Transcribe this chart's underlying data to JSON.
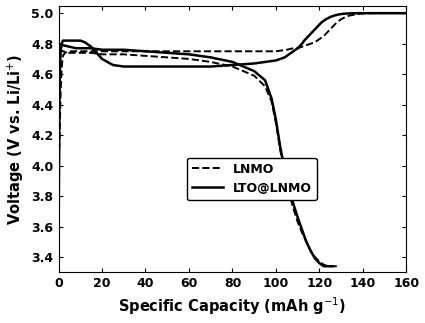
{
  "title": "",
  "xlabel": "Specific Capacity (mAh g⁻¹)",
  "ylabel": "Voltage (V vs. Li/Li⁺)",
  "xlim": [
    0,
    160
  ],
  "ylim": [
    3.3,
    5.05
  ],
  "xticks": [
    0,
    20,
    40,
    60,
    80,
    100,
    120,
    140,
    160
  ],
  "yticks": [
    3.4,
    3.6,
    3.8,
    4.0,
    4.2,
    4.4,
    4.6,
    4.8,
    5.0
  ],
  "lnmo_charge_x": [
    0,
    0.5,
    1.0,
    1.5,
    2,
    3,
    5,
    8,
    10,
    15,
    20,
    30,
    40,
    50,
    60,
    70,
    80,
    90,
    100,
    105,
    108,
    110,
    112,
    114,
    116,
    118,
    120,
    122,
    124,
    126,
    128,
    130,
    132,
    134,
    136,
    138,
    140,
    142,
    145,
    148,
    150,
    155,
    158,
    160
  ],
  "lnmo_charge_y": [
    3.9,
    4.2,
    4.5,
    4.65,
    4.72,
    4.74,
    4.75,
    4.75,
    4.75,
    4.75,
    4.75,
    4.75,
    4.75,
    4.75,
    4.75,
    4.75,
    4.75,
    4.75,
    4.75,
    4.76,
    4.77,
    4.77,
    4.78,
    4.79,
    4.8,
    4.81,
    4.83,
    4.85,
    4.88,
    4.91,
    4.94,
    4.96,
    4.975,
    4.985,
    4.99,
    4.995,
    4.998,
    4.999,
    5.0,
    5.0,
    5.0,
    5.0,
    5.0,
    5.0
  ],
  "lnmo_discharge_x": [
    0,
    2,
    5,
    8,
    10,
    15,
    20,
    25,
    30,
    40,
    50,
    60,
    70,
    80,
    90,
    95,
    98,
    100,
    102,
    104,
    106,
    108,
    110,
    112,
    114,
    116,
    118,
    120,
    122,
    124,
    125,
    126,
    127,
    128
  ],
  "lnmo_discharge_y": [
    4.76,
    4.75,
    4.74,
    4.74,
    4.74,
    4.74,
    4.73,
    4.73,
    4.73,
    4.72,
    4.71,
    4.7,
    4.68,
    4.65,
    4.59,
    4.52,
    4.42,
    4.28,
    4.1,
    3.95,
    3.82,
    3.72,
    3.63,
    3.56,
    3.5,
    3.44,
    3.4,
    3.37,
    3.35,
    3.34,
    3.34,
    3.34,
    3.34,
    3.34
  ],
  "lto_charge_x": [
    0,
    0.2,
    0.4,
    0.7,
    1.0,
    1.5,
    2,
    3,
    5,
    8,
    10,
    12,
    15,
    20,
    25,
    30,
    35,
    40,
    50,
    60,
    70,
    80,
    90,
    95,
    100,
    102,
    104,
    106,
    108,
    110,
    112,
    113,
    115,
    117,
    119,
    121,
    123,
    125,
    127,
    129,
    131,
    133,
    135,
    137,
    140,
    143,
    145,
    148,
    150,
    153,
    155,
    157,
    159,
    160
  ],
  "lto_charge_y": [
    3.45,
    3.9,
    4.4,
    4.65,
    4.75,
    4.8,
    4.82,
    4.82,
    4.82,
    4.82,
    4.82,
    4.81,
    4.78,
    4.7,
    4.66,
    4.65,
    4.65,
    4.65,
    4.65,
    4.65,
    4.65,
    4.66,
    4.67,
    4.68,
    4.69,
    4.7,
    4.71,
    4.73,
    4.75,
    4.77,
    4.8,
    4.82,
    4.85,
    4.88,
    4.91,
    4.94,
    4.96,
    4.975,
    4.985,
    4.992,
    4.996,
    4.998,
    4.999,
    5.0,
    5.0,
    5.0,
    5.0,
    5.0,
    5.0,
    5.0,
    5.0,
    5.0,
    5.0,
    5.0
  ],
  "lto_discharge_x": [
    0,
    2,
    5,
    8,
    10,
    15,
    20,
    25,
    30,
    40,
    50,
    60,
    70,
    80,
    90,
    95,
    98,
    100,
    102,
    104,
    106,
    108,
    110,
    112,
    114,
    116,
    118,
    120,
    121,
    122,
    123,
    124,
    125,
    126
  ],
  "lto_discharge_y": [
    4.8,
    4.79,
    4.78,
    4.77,
    4.77,
    4.77,
    4.76,
    4.76,
    4.76,
    4.75,
    4.74,
    4.73,
    4.71,
    4.68,
    4.62,
    4.56,
    4.44,
    4.3,
    4.12,
    3.98,
    3.85,
    3.75,
    3.66,
    3.58,
    3.5,
    3.44,
    3.39,
    3.36,
    3.35,
    3.34,
    3.34,
    3.34,
    3.34,
    3.34
  ],
  "figsize": [
    4.25,
    3.23
  ],
  "dpi": 100,
  "font_size_label": 10.5,
  "font_size_tick": 9,
  "font_size_legend": 9
}
